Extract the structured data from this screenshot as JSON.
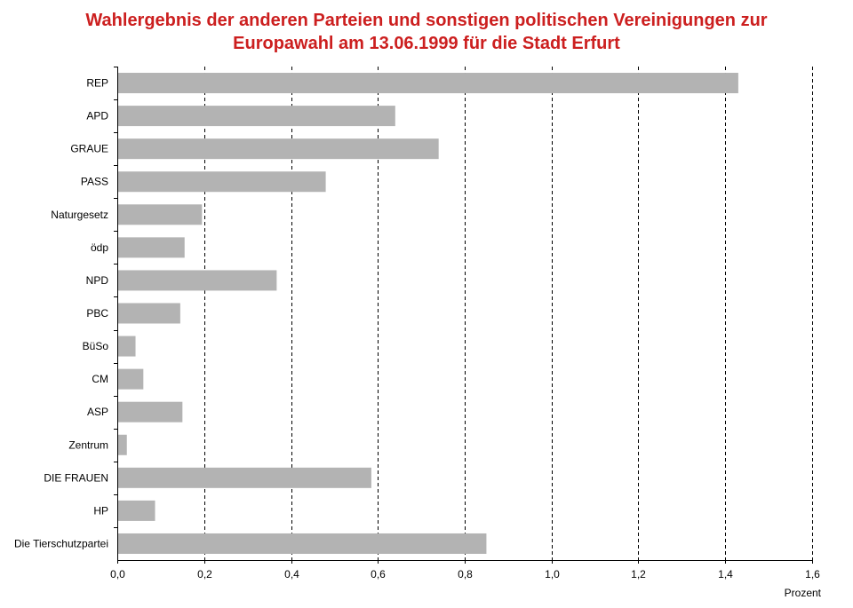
{
  "chart_data": {
    "type": "bar",
    "orientation": "horizontal",
    "title_lines": [
      "Wahlergebnis der anderen Parteien und sonstigen politischen Vereinigungen zur",
      "Europawahl am 13.06.1999 für die Stadt Erfurt"
    ],
    "xlabel": "Prozent",
    "ylabel": "",
    "xlim": [
      0,
      1.6
    ],
    "x_ticks": [
      0,
      0.2,
      0.4,
      0.6,
      0.8,
      1.0,
      1.2,
      1.4,
      1.6
    ],
    "x_tick_labels": [
      "0,0",
      "0,2",
      "0,4",
      "0,6",
      "0,8",
      "1,0",
      "1,2",
      "1,4",
      "1,6"
    ],
    "grid": "vertical dashed",
    "legend": "none",
    "bar_color": "#b3b3b3",
    "categories": [
      "REP",
      "APD",
      "GRAUE",
      "PASS",
      "Naturgesetz",
      "ödp",
      "NPD",
      "PBC",
      "BüSo",
      "CM",
      "ASP",
      "Zentrum",
      "DIE FRAUEN",
      "HP",
      "Die Tierschutzpartei"
    ],
    "values": [
      1.43,
      0.64,
      0.74,
      0.48,
      0.195,
      0.155,
      0.367,
      0.145,
      0.042,
      0.06,
      0.15,
      0.022,
      0.585,
      0.087,
      0.85
    ]
  }
}
